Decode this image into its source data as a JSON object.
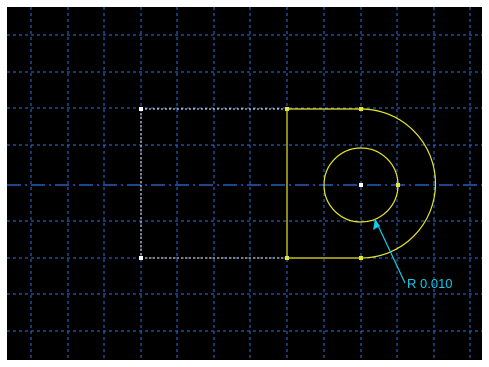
{
  "sketch": {
    "background_color": "#000000",
    "grid_color": "#2f6fe0",
    "centerline_color": "#2f6fe0",
    "profile_color": "#e6e62e",
    "construction_color": "#ffffff",
    "dimension_color": "#17c8e8",
    "point_icon": "vertex-dot-icon"
  },
  "dimension": {
    "label": "R 0.010"
  }
}
